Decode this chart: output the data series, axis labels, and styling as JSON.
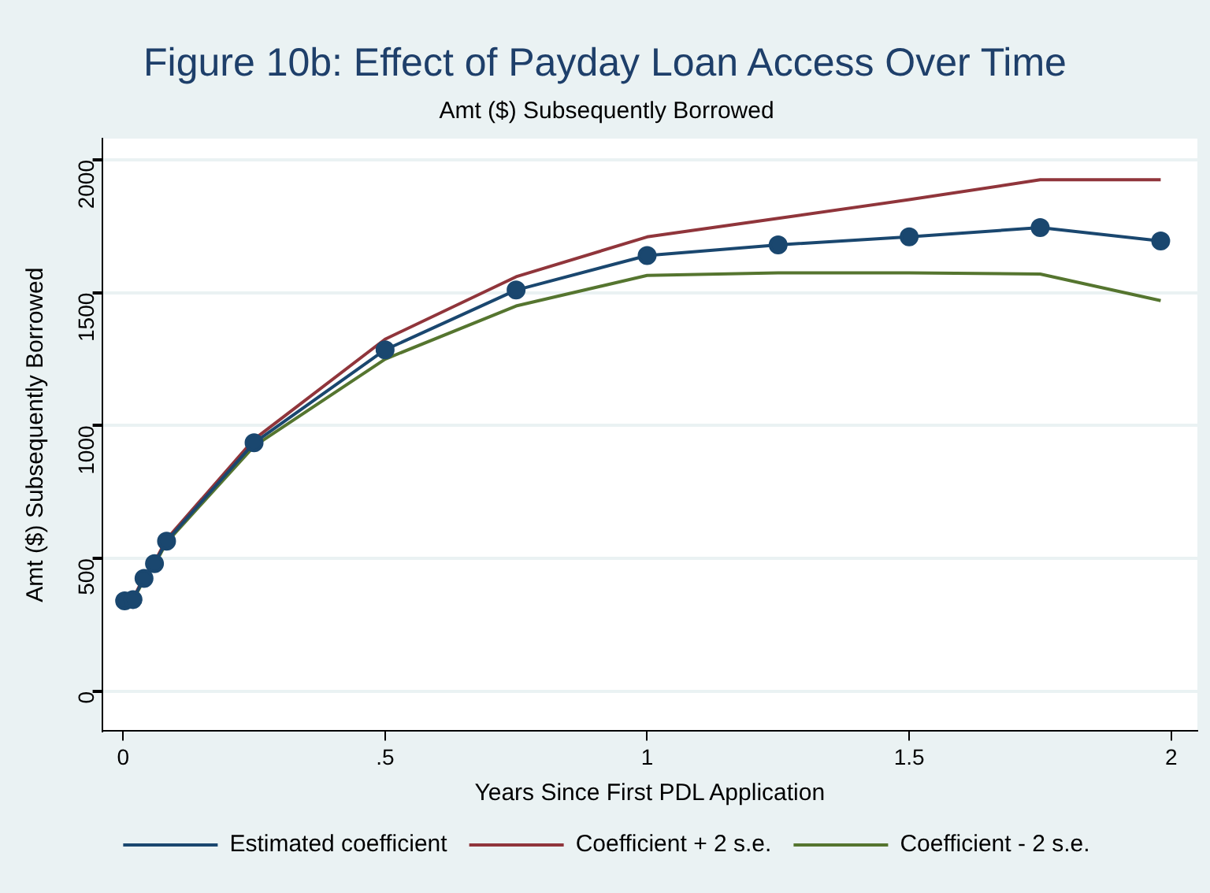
{
  "chart_data": {
    "type": "line",
    "title": "Figure 10b: Effect of Payday Loan Access Over Time",
    "subtitle": "Amt ($) Subsequently Borrowed",
    "xlabel": "Years Since First PDL Application",
    "ylabel": "Amt ($) Subsequently Borrowed",
    "x": [
      0.003,
      0.019,
      0.04,
      0.06,
      0.083,
      0.25,
      0.5,
      0.75,
      1,
      1.25,
      1.5,
      1.75,
      1.98
    ],
    "series": [
      {
        "name": "Estimated coefficient",
        "color": "#1a476f",
        "marker": "circle",
        "values": [
          340,
          345,
          425,
          480,
          565,
          935,
          1285,
          1510,
          1640,
          1680,
          1710,
          1745,
          1695
        ]
      },
      {
        "name": "Coefficient + 2 s.e.",
        "color": "#90353b",
        "marker": "none",
        "values": [
          342,
          348,
          430,
          485,
          572,
          948,
          1325,
          1560,
          1710,
          1780,
          1850,
          1925,
          1925
        ]
      },
      {
        "name": "Coefficient - 2 s.e.",
        "color": "#55752f",
        "marker": "none",
        "values": [
          336,
          342,
          420,
          475,
          560,
          922,
          1250,
          1450,
          1565,
          1575,
          1575,
          1570,
          1470
        ]
      }
    ],
    "xlim": [
      -0.04,
      2.05
    ],
    "ylim": [
      -150,
      2080
    ],
    "xticks": [
      {
        "value": 0,
        "label": "0"
      },
      {
        "value": 0.5,
        "label": ".5"
      },
      {
        "value": 1,
        "label": "1"
      },
      {
        "value": 1.5,
        "label": "1.5"
      },
      {
        "value": 2,
        "label": "2"
      }
    ],
    "yticks": [
      0,
      500,
      1000,
      1500,
      2000
    ],
    "grid": "y",
    "legend": "bottom",
    "line_style": "solid"
  }
}
